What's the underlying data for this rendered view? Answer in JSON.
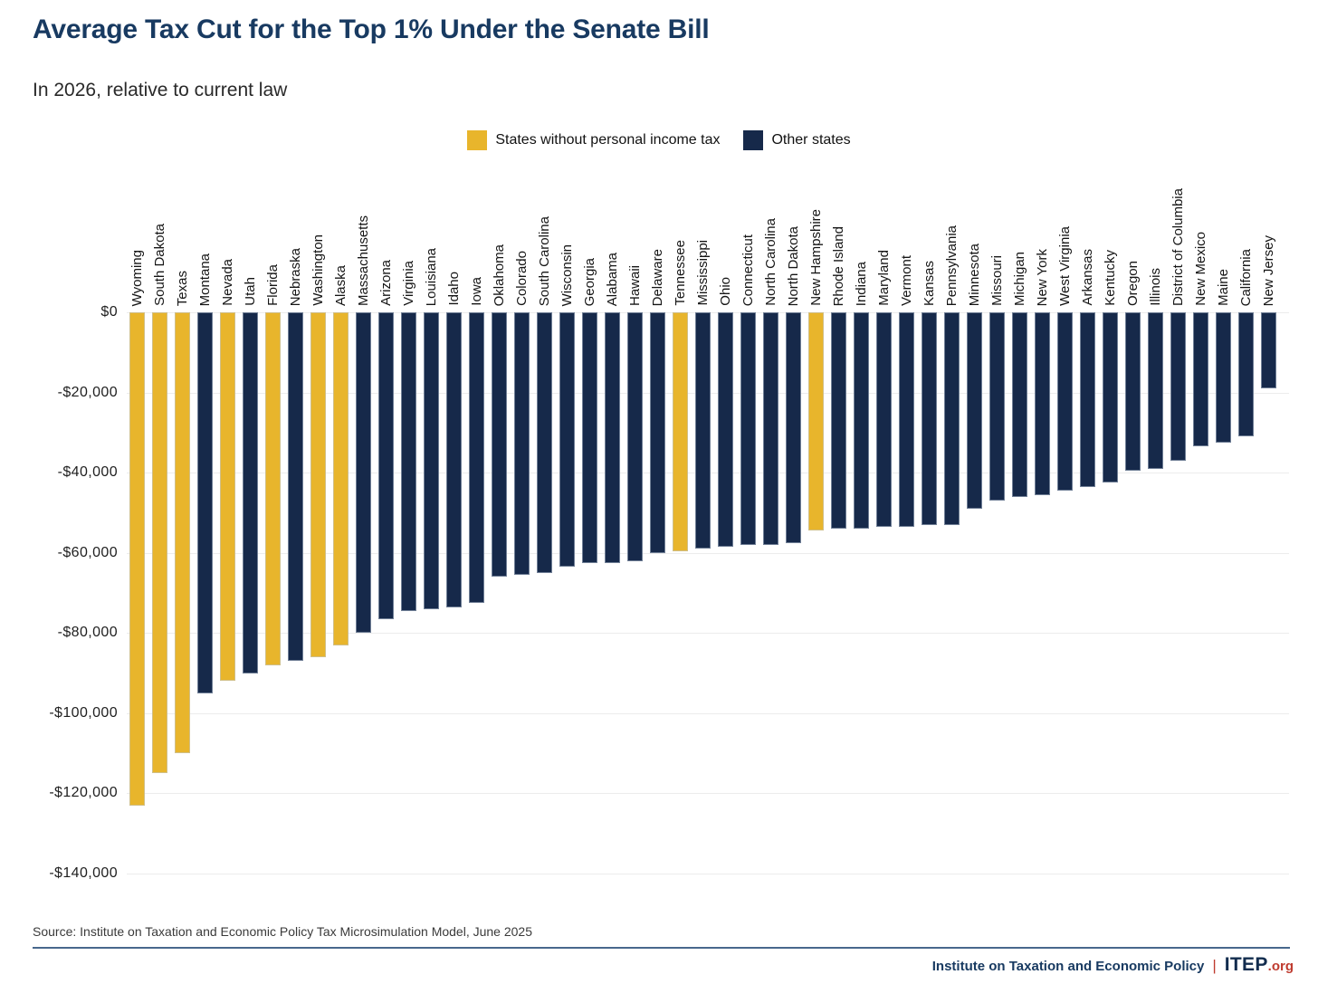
{
  "chart_data": {
    "type": "bar",
    "title": "Average Tax Cut for the Top 1% Under the Senate Bill",
    "subtitle": "In 2026, relative to current law",
    "categories": [
      "Wyoming",
      "South Dakota",
      "Texas",
      "Montana",
      "Nevada",
      "Utah",
      "Florida",
      "Nebraska",
      "Washington",
      "Alaska",
      "Massachusetts",
      "Arizona",
      "Virginia",
      "Louisiana",
      "Idaho",
      "Iowa",
      "Oklahoma",
      "Colorado",
      "South Carolina",
      "Wisconsin",
      "Georgia",
      "Alabama",
      "Hawaii",
      "Delaware",
      "Tennessee",
      "Mississippi",
      "Ohio",
      "Connecticut",
      "North Carolina",
      "North Dakota",
      "New Hampshire",
      "Rhode Island",
      "Indiana",
      "Maryland",
      "Vermont",
      "Kansas",
      "Pennsylvania",
      "Minnesota",
      "Missouri",
      "Michigan",
      "New York",
      "West Virginia",
      "Arkansas",
      "Kentucky",
      "Oregon",
      "Illinois",
      "District of Columbia",
      "New Mexico",
      "Maine",
      "California",
      "New Jersey"
    ],
    "values": [
      -123000,
      -115000,
      -110000,
      -95000,
      -92000,
      -90000,
      -88000,
      -87000,
      -86000,
      -83000,
      -80000,
      -76500,
      -74500,
      -74000,
      -73500,
      -72500,
      -66000,
      -65500,
      -65000,
      -63500,
      -62500,
      -62500,
      -62000,
      -60000,
      -59500,
      -59000,
      -58500,
      -58000,
      -58000,
      -57500,
      -54500,
      -54000,
      -54000,
      -53500,
      -53500,
      -53000,
      -53000,
      -49000,
      -47000,
      -46000,
      -45500,
      -44500,
      -43500,
      -42500,
      -39500,
      -39000,
      -37000,
      -33500,
      -32500,
      -31000,
      -19000
    ],
    "no_personal_income_tax": [
      true,
      true,
      true,
      false,
      true,
      false,
      true,
      false,
      true,
      true,
      false,
      false,
      false,
      false,
      false,
      false,
      false,
      false,
      false,
      false,
      false,
      false,
      false,
      false,
      true,
      false,
      false,
      false,
      false,
      false,
      true,
      false,
      false,
      false,
      false,
      false,
      false,
      false,
      false,
      false,
      false,
      false,
      false,
      false,
      false,
      false,
      false,
      false,
      false,
      false,
      false
    ],
    "colors": {
      "no_income_tax": "#e8b52c",
      "other": "#16294a"
    },
    "legend": [
      {
        "label": "States without personal income tax",
        "color": "#e8b52c"
      },
      {
        "label": "Other states",
        "color": "#16294a"
      }
    ],
    "ylim": [
      -140000,
      0
    ],
    "y_ticks": [
      0,
      -20000,
      -40000,
      -60000,
      -80000,
      -100000,
      -120000,
      -140000
    ],
    "y_tick_labels": [
      "$0",
      "-$20,000",
      "-$40,000",
      "-$60,000",
      "-$80,000",
      "-$100,000",
      "-$120,000",
      "-$140,000"
    ],
    "grid": "horizontal",
    "legend_position": "top-center"
  },
  "footer": {
    "source": "Source: Institute on Taxation and Economic Policy Tax Microsimulation Model, June 2025",
    "org": "Institute on Taxation and Economic Policy",
    "separator": "|",
    "logo": "ITEP",
    "logo_suffix": ".org"
  }
}
